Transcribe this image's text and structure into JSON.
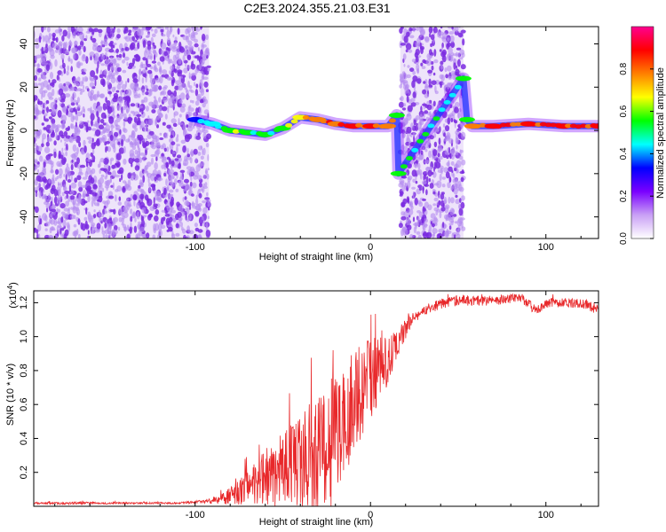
{
  "figure_title": "C2E3.2024.355.21.03.E31",
  "colors": {
    "snr_line": "#e8282a",
    "noise_purple": "#7a2ae0",
    "noise_light": "#d9c4f4",
    "axis": "#000000"
  },
  "chart_data": [
    {
      "type": "heatmap",
      "title": "C2E3.2024.355.21.03.E31",
      "xlabel": "Height of straight line (km)",
      "ylabel": "Frequency (Hz)",
      "xlim": [
        -192,
        130
      ],
      "ylim": [
        -50,
        48
      ],
      "x_ticks": [
        -100,
        0,
        100
      ],
      "y_ticks": [
        -40,
        -20,
        0,
        20,
        40
      ],
      "colorbar": {
        "label": "Normalized spectral amplitude",
        "range": [
          0.0,
          1.0
        ],
        "ticks": [
          0.0,
          0.2,
          0.4,
          0.6,
          0.8
        ],
        "colormap": [
          "#ffffff",
          "#c9a0f5",
          "#7a00ff",
          "#0000ff",
          "#00ffff",
          "#00ff00",
          "#ffff00",
          "#ff7f00",
          "#ff0000",
          "#ff0090"
        ]
      },
      "noise_regions": [
        {
          "x_start": -192,
          "x_end": -92,
          "f_min": -50,
          "f_max": 48
        },
        {
          "x_start": 17,
          "x_end": 53,
          "f_min": -50,
          "f_max": 48
        }
      ],
      "signal_track": [
        {
          "x": -100,
          "f": 5,
          "amp": 0.35
        },
        {
          "x": -90,
          "f": 3,
          "amp": 0.45
        },
        {
          "x": -80,
          "f": 0,
          "amp": 0.6
        },
        {
          "x": -70,
          "f": -1,
          "amp": 0.55
        },
        {
          "x": -60,
          "f": -2,
          "amp": 0.5
        },
        {
          "x": -50,
          "f": 1,
          "amp": 0.55
        },
        {
          "x": -40,
          "f": 6,
          "amp": 0.7
        },
        {
          "x": -30,
          "f": 5,
          "amp": 0.75
        },
        {
          "x": -20,
          "f": 3,
          "amp": 0.8
        },
        {
          "x": -10,
          "f": 2,
          "amp": 0.85
        },
        {
          "x": 0,
          "f": 2,
          "amp": 0.85
        },
        {
          "x": 10,
          "f": 2,
          "amp": 0.8
        },
        {
          "x": 15,
          "f": 7,
          "amp": 0.6
        },
        {
          "x": 16,
          "f": -20,
          "amp": 0.5
        },
        {
          "x": 53,
          "f": 24,
          "amp": 0.5
        },
        {
          "x": 55,
          "f": 5,
          "amp": 0.55
        },
        {
          "x": 58,
          "f": 2,
          "amp": 0.8
        },
        {
          "x": 70,
          "f": 2,
          "amp": 0.85
        },
        {
          "x": 90,
          "f": 3,
          "amp": 0.85
        },
        {
          "x": 110,
          "f": 2,
          "amp": 0.85
        },
        {
          "x": 130,
          "f": 2,
          "amp": 0.85
        }
      ]
    },
    {
      "type": "line",
      "xlabel": "Height of straight line (km)",
      "ylabel": "SNR (10 * v/v)",
      "y_multiplier": "(x10",
      "y_multiplier_exp": "4",
      "xlim": [
        -192,
        130
      ],
      "ylim": [
        0,
        1.27
      ],
      "x_ticks": [
        -100,
        0,
        100
      ],
      "y_ticks": [
        0.2,
        0.4,
        0.6,
        0.8,
        1.0,
        1.2
      ],
      "series": [
        {
          "x": [
            -192,
            -170,
            -150,
            -130,
            -110,
            -95,
            -85,
            -78,
            -70,
            -62,
            -55,
            -48,
            -40,
            -33,
            -26,
            -20,
            -15,
            -10,
            -5,
            0,
            5,
            10,
            15,
            20,
            25,
            30,
            35,
            40,
            45,
            50,
            60,
            70,
            80,
            85,
            90,
            95,
            100,
            110,
            120,
            130
          ],
          "values": [
            0.02,
            0.02,
            0.02,
            0.02,
            0.02,
            0.03,
            0.05,
            0.08,
            0.14,
            0.2,
            0.24,
            0.28,
            0.33,
            0.38,
            0.43,
            0.5,
            0.6,
            0.68,
            0.74,
            0.8,
            0.85,
            0.9,
            0.98,
            1.06,
            1.12,
            1.16,
            1.18,
            1.2,
            1.21,
            1.22,
            1.22,
            1.22,
            1.23,
            1.24,
            1.2,
            1.16,
            1.2,
            1.21,
            1.2,
            1.17
          ],
          "noise_amp": [
            0.005,
            0.008,
            0.006,
            0.005,
            0.005,
            0.01,
            0.03,
            0.06,
            0.1,
            0.15,
            0.2,
            0.22,
            0.28,
            0.32,
            0.35,
            0.4,
            0.35,
            0.3,
            0.3,
            0.25,
            0.2,
            0.15,
            0.1,
            0.06,
            0.04,
            0.03,
            0.03,
            0.03,
            0.03,
            0.03,
            0.03,
            0.03,
            0.03,
            0.03,
            0.03,
            0.03,
            0.03,
            0.03,
            0.03,
            0.03
          ]
        }
      ]
    }
  ]
}
